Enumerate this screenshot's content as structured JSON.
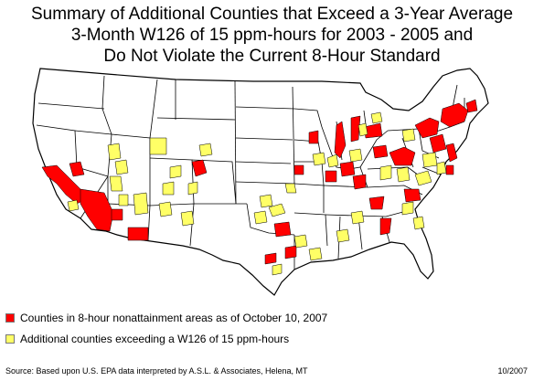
{
  "title": {
    "line1": "Summary of Additional Counties that Exceed a 3-Year Average",
    "line2": "3-Month W126 of 15 ppm-hours for 2003 - 2005 and",
    "line3": "Do Not Violate the Current 8-Hour Standard"
  },
  "legend": {
    "items": [
      {
        "label": "Counties in 8-hour nonattainment areas as of October 10, 2007",
        "color": "#ff0000"
      },
      {
        "label": "Additional counties exceeding a W126 of 15 ppm-hours",
        "color": "#ffff66"
      }
    ]
  },
  "footer": {
    "source": "Source: Based upon U.S. EPA data interpreted by A.S.L. & Associates, Helena, MT",
    "date": "10/2007"
  },
  "colors": {
    "nonattainment": "#ff0000",
    "exceeding": "#ffff66",
    "state_border": "#000000",
    "land": "#ffffff"
  }
}
